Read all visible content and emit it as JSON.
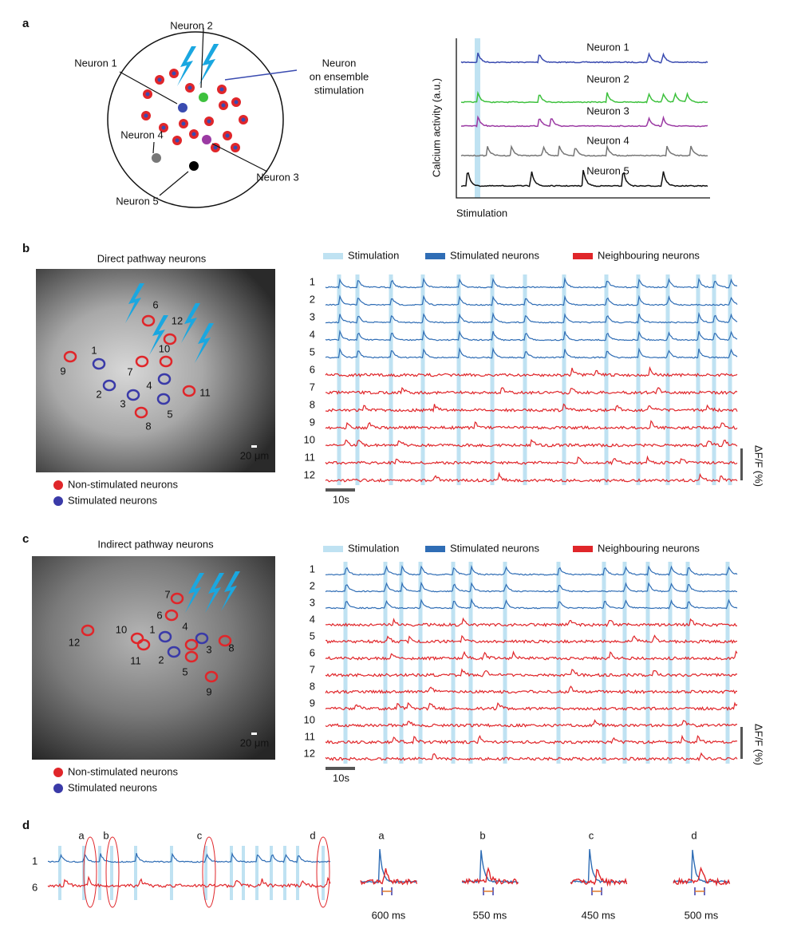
{
  "panel_a": {
    "label": "a",
    "diagram_labels": [
      "Neuron 1",
      "Neuron 2",
      "Neuron 3",
      "Neuron 4",
      "Neuron 5"
    ],
    "stim_label": [
      "Neuron",
      "on ensemble",
      "stimulation"
    ],
    "traces": [
      "Neuron 1",
      "Neuron 2",
      "Neuron 3",
      "Neuron 4",
      "Neuron 5"
    ],
    "y_label": "Calcium activity (a.u.)",
    "x_label": "Stimulation"
  },
  "panel_b": {
    "label": "b",
    "title": "Direct pathway neurons",
    "roi_labels": [
      "1",
      "2",
      "3",
      "4",
      "5",
      "6",
      "7",
      "8",
      "9",
      "10",
      "11",
      "12"
    ],
    "scale_bar": "20 μm",
    "legend": [
      "Non-stimulated neurons",
      "Stimulated neurons"
    ],
    "trace_legend": [
      "Stimulation",
      "Stimulated neurons",
      "Neighbouring neurons"
    ],
    "rows": [
      "1",
      "2",
      "3",
      "4",
      "5",
      "6",
      "7",
      "8",
      "9",
      "10",
      "11",
      "12"
    ],
    "time_bar": "10s",
    "df_label": "ΔF/F (%)"
  },
  "panel_c": {
    "label": "c",
    "title": "Indirect pathway neurons",
    "roi_labels": [
      "1",
      "2",
      "3",
      "4",
      "5",
      "6",
      "7",
      "8",
      "9",
      "10",
      "11",
      "12"
    ],
    "scale_bar": "20 μm",
    "legend": [
      "Non-stimulated neurons",
      "Stimulated neurons"
    ],
    "trace_legend": [
      "Stimulation",
      "Stimulated neurons",
      "Neighbouring neurons"
    ],
    "rows": [
      "1",
      "2",
      "3",
      "4",
      "5",
      "6",
      "7",
      "8",
      "9",
      "10",
      "11",
      "12"
    ],
    "time_bar": "10s",
    "df_label": "ΔF/F (%)"
  },
  "panel_d": {
    "label": "d",
    "events": [
      "a",
      "b",
      "c",
      "d"
    ],
    "rows": [
      "1",
      "6"
    ],
    "insets": [
      {
        "label": "a",
        "delay": "600 ms"
      },
      {
        "label": "b",
        "delay": "550 ms"
      },
      {
        "label": "c",
        "delay": "450 ms"
      },
      {
        "label": "d",
        "delay": "500 ms"
      }
    ]
  }
}
